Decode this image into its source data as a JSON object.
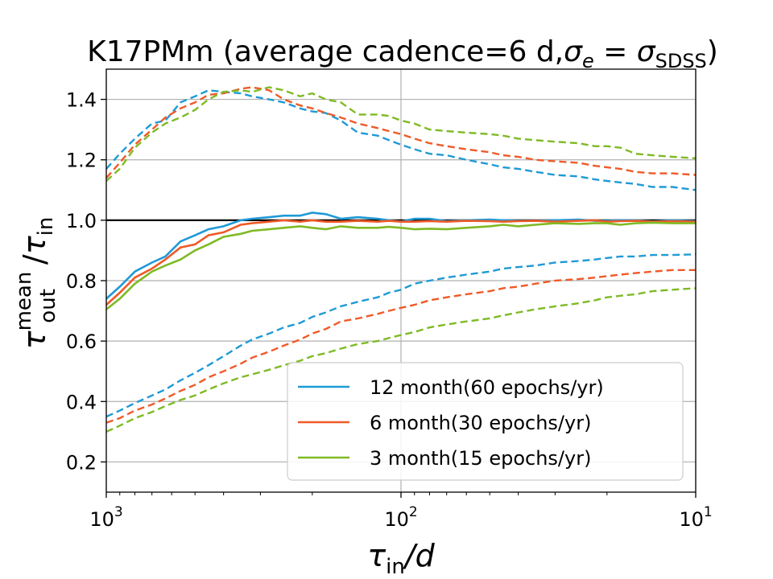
{
  "chart_data": {
    "type": "line",
    "title": "K17PMm (average cadence=6 d,σe = σSDSS)",
    "title_parts": {
      "main": "K17PMm (average cadence=6 d,",
      "sigma": "σ",
      "e": "e",
      "eq": " = ",
      "sdss": "SDSS",
      "close": ")"
    },
    "xlabel": "τin/d",
    "xlabel_parts": {
      "tau": "τ",
      "sub": "in",
      "rest": "/d"
    },
    "ylabel": "τout mean/τin",
    "ylabel_parts": {
      "tau": "τ",
      "sup": "mean",
      "sub": "out",
      "slash": "/",
      "tau2": "τ",
      "sub2": "in"
    },
    "x_scale": "log",
    "x_reversed": true,
    "xlim": [
      1000,
      10
    ],
    "ylim": [
      0.1,
      1.5
    ],
    "x_ticks": [
      {
        "value": 1000,
        "base": "10",
        "exp": "3"
      },
      {
        "value": 100,
        "base": "10",
        "exp": "2"
      },
      {
        "value": 10,
        "base": "10",
        "exp": "1"
      }
    ],
    "y_ticks": [
      {
        "value": 0.2,
        "label": "0.2"
      },
      {
        "value": 0.4,
        "label": "0.4"
      },
      {
        "value": 0.6,
        "label": "0.6"
      },
      {
        "value": 0.8,
        "label": "0.8"
      },
      {
        "value": 1.0,
        "label": "1.0"
      },
      {
        "value": 1.2,
        "label": "1.2"
      },
      {
        "value": 1.4,
        "label": "1.4"
      }
    ],
    "grid": true,
    "reference_line": {
      "y": 1.0,
      "color": "#000000"
    },
    "legend_position": "lower-right",
    "x": [
      1000,
      900,
      800,
      700,
      630,
      560,
      500,
      450,
      400,
      350,
      320,
      280,
      250,
      220,
      200,
      180,
      160,
      140,
      120,
      110,
      100,
      90,
      80,
      70,
      60,
      50,
      45,
      40,
      35,
      30,
      25,
      22,
      20,
      18,
      16,
      14,
      12,
      10
    ],
    "series": [
      {
        "name": "12 month(60 epochs/yr)",
        "color": "#1f9ad6",
        "mean": [
          0.74,
          0.78,
          0.83,
          0.86,
          0.88,
          0.93,
          0.95,
          0.97,
          0.98,
          1.0,
          1.005,
          1.01,
          1.015,
          1.015,
          1.025,
          1.02,
          1.005,
          1.01,
          1.005,
          1.0,
          0.995,
          1.005,
          1.005,
          0.997,
          1.0,
          1.002,
          1.0,
          0.998,
          0.998,
          1.0,
          1.002,
          0.998,
          0.998,
          1.0,
          1.0,
          0.996,
          1.0,
          0.997
        ],
        "upper": [
          1.17,
          1.22,
          1.27,
          1.32,
          1.33,
          1.39,
          1.41,
          1.43,
          1.425,
          1.42,
          1.41,
          1.4,
          1.39,
          1.37,
          1.36,
          1.355,
          1.33,
          1.29,
          1.28,
          1.265,
          1.25,
          1.235,
          1.22,
          1.215,
          1.2,
          1.185,
          1.175,
          1.17,
          1.16,
          1.15,
          1.145,
          1.135,
          1.13,
          1.125,
          1.12,
          1.11,
          1.11,
          1.1
        ],
        "lower": [
          0.35,
          0.37,
          0.395,
          0.42,
          0.44,
          0.47,
          0.495,
          0.52,
          0.55,
          0.585,
          0.605,
          0.625,
          0.645,
          0.66,
          0.68,
          0.695,
          0.715,
          0.73,
          0.745,
          0.76,
          0.77,
          0.79,
          0.8,
          0.81,
          0.82,
          0.83,
          0.84,
          0.845,
          0.85,
          0.86,
          0.865,
          0.87,
          0.875,
          0.88,
          0.88,
          0.885,
          0.885,
          0.887
        ]
      },
      {
        "name": "6 month(30 epochs/yr)",
        "color": "#ef5a28",
        "mean": [
          0.72,
          0.76,
          0.81,
          0.84,
          0.87,
          0.91,
          0.92,
          0.95,
          0.96,
          0.985,
          0.99,
          0.995,
          1.0,
          0.995,
          1.0,
          0.995,
          0.995,
          0.998,
          0.995,
          0.998,
          0.995,
          0.995,
          0.997,
          0.995,
          0.998,
          0.997,
          0.995,
          0.997,
          0.998,
          0.995,
          0.998,
          1.0,
          0.995,
          0.997,
          0.998,
          0.995,
          0.997,
          0.995
        ],
        "upper": [
          1.14,
          1.19,
          1.25,
          1.3,
          1.34,
          1.37,
          1.39,
          1.415,
          1.42,
          1.435,
          1.44,
          1.43,
          1.4,
          1.38,
          1.37,
          1.355,
          1.34,
          1.32,
          1.305,
          1.295,
          1.285,
          1.27,
          1.255,
          1.245,
          1.235,
          1.225,
          1.215,
          1.21,
          1.2,
          1.195,
          1.19,
          1.18,
          1.175,
          1.17,
          1.16,
          1.155,
          1.155,
          1.15
        ],
        "lower": [
          0.33,
          0.345,
          0.37,
          0.39,
          0.41,
          0.435,
          0.455,
          0.48,
          0.5,
          0.525,
          0.545,
          0.565,
          0.585,
          0.605,
          0.625,
          0.64,
          0.665,
          0.675,
          0.69,
          0.7,
          0.71,
          0.72,
          0.735,
          0.745,
          0.755,
          0.765,
          0.775,
          0.78,
          0.79,
          0.8,
          0.805,
          0.81,
          0.815,
          0.82,
          0.825,
          0.83,
          0.835,
          0.835
        ]
      },
      {
        "name": "3 month(15 epochs/yr)",
        "color": "#7fba25",
        "mean": [
          0.705,
          0.74,
          0.79,
          0.83,
          0.85,
          0.87,
          0.9,
          0.92,
          0.945,
          0.955,
          0.965,
          0.97,
          0.975,
          0.98,
          0.975,
          0.97,
          0.98,
          0.975,
          0.975,
          0.978,
          0.975,
          0.97,
          0.972,
          0.97,
          0.975,
          0.98,
          0.985,
          0.98,
          0.985,
          0.99,
          0.988,
          0.99,
          0.99,
          0.985,
          0.99,
          0.992,
          0.99,
          0.99
        ],
        "upper": [
          1.13,
          1.17,
          1.24,
          1.29,
          1.32,
          1.34,
          1.365,
          1.4,
          1.425,
          1.43,
          1.425,
          1.44,
          1.43,
          1.41,
          1.42,
          1.4,
          1.39,
          1.35,
          1.35,
          1.345,
          1.33,
          1.32,
          1.3,
          1.295,
          1.29,
          1.285,
          1.28,
          1.27,
          1.265,
          1.26,
          1.255,
          1.245,
          1.245,
          1.24,
          1.22,
          1.215,
          1.21,
          1.205
        ],
        "lower": [
          0.3,
          0.32,
          0.345,
          0.365,
          0.385,
          0.405,
          0.42,
          0.44,
          0.46,
          0.48,
          0.49,
          0.505,
          0.52,
          0.535,
          0.55,
          0.56,
          0.575,
          0.59,
          0.6,
          0.61,
          0.62,
          0.63,
          0.645,
          0.655,
          0.665,
          0.675,
          0.685,
          0.695,
          0.705,
          0.715,
          0.725,
          0.735,
          0.745,
          0.75,
          0.755,
          0.765,
          0.77,
          0.775
        ]
      }
    ]
  }
}
